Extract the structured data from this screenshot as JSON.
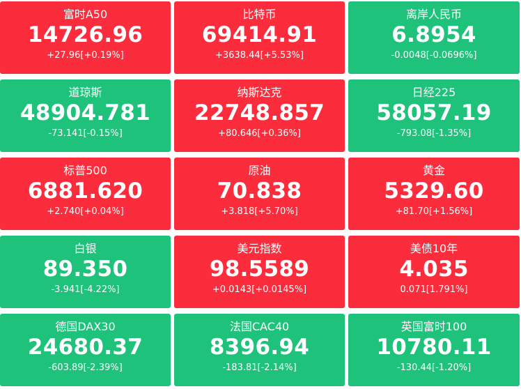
{
  "colors": {
    "up": "#fb2d3d",
    "down": "#1fc27b",
    "text": "#ffffff"
  },
  "tiles": [
    {
      "name": "富时A50",
      "price": "14726.96",
      "change": "+27.96[+0.19%]",
      "trend": "up"
    },
    {
      "name": "比特币",
      "price": "69414.91",
      "change": "+3638.44[+5.53%]",
      "trend": "up"
    },
    {
      "name": "离岸人民币",
      "price": "6.8954",
      "change": "-0.0048[-0.0696%]",
      "trend": "down"
    },
    {
      "name": "道琼斯",
      "price": "48904.781",
      "change": "-73.141[-0.15%]",
      "trend": "down"
    },
    {
      "name": "纳斯达克",
      "price": "22748.857",
      "change": "+80.646[+0.36%]",
      "trend": "up"
    },
    {
      "name": "日经225",
      "price": "58057.19",
      "change": "-793.08[-1.35%]",
      "trend": "down"
    },
    {
      "name": "标普500",
      "price": "6881.620",
      "change": "+2.740[+0.04%]",
      "trend": "up"
    },
    {
      "name": "原油",
      "price": "70.838",
      "change": "+3.818[+5.70%]",
      "trend": "up"
    },
    {
      "name": "黄金",
      "price": "5329.60",
      "change": "+81.70[+1.56%]",
      "trend": "up"
    },
    {
      "name": "白银",
      "price": "89.350",
      "change": "-3.941[-4.22%]",
      "trend": "down"
    },
    {
      "name": "美元指数",
      "price": "98.5589",
      "change": "+0.0143[+0.0145%]",
      "trend": "up"
    },
    {
      "name": "美债10年",
      "price": "4.035",
      "change": "0.071[1.791%]",
      "trend": "up"
    },
    {
      "name": "德国DAX30",
      "price": "24680.37",
      "change": "-603.89[-2.39%]",
      "trend": "down"
    },
    {
      "name": "法国CAC40",
      "price": "8396.94",
      "change": "-183.81[-2.14%]",
      "trend": "down"
    },
    {
      "name": "英国富时100",
      "price": "10780.11",
      "change": "-130.44[-1.20%]",
      "trend": "down"
    }
  ]
}
